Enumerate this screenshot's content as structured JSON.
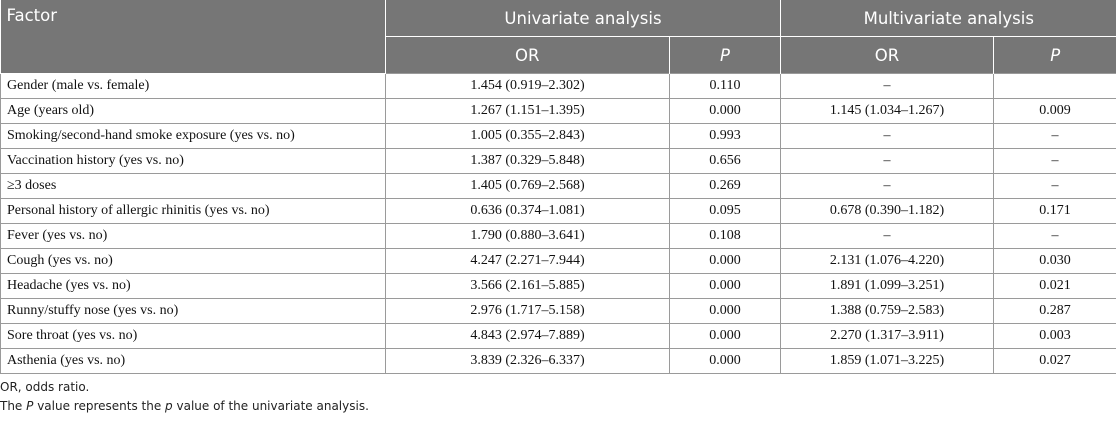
{
  "table": {
    "headers": {
      "factor": "Factor",
      "univariate": "Univariate analysis",
      "multivariate": "Multivariate analysis",
      "or": "OR",
      "p": "P"
    },
    "rows": [
      {
        "factor": "Gender (male vs. female)",
        "uni_or": "1.454 (0.919–2.302)",
        "uni_p": "0.110",
        "multi_or": "–",
        "multi_p": ""
      },
      {
        "factor": "Age (years old)",
        "uni_or": "1.267 (1.151–1.395)",
        "uni_p": "0.000",
        "multi_or": "1.145 (1.034–1.267)",
        "multi_p": "0.009"
      },
      {
        "factor": "Smoking/second-hand smoke exposure (yes vs. no)",
        "uni_or": "1.005 (0.355–2.843)",
        "uni_p": "0.993",
        "multi_or": "–",
        "multi_p": "–"
      },
      {
        "factor": "Vaccination history (yes vs. no)",
        "uni_or": "1.387 (0.329–5.848)",
        "uni_p": "0.656",
        "multi_or": "–",
        "multi_p": "–"
      },
      {
        "factor": "≥3 doses",
        "uni_or": "1.405 (0.769–2.568)",
        "uni_p": "0.269",
        "multi_or": "–",
        "multi_p": "–"
      },
      {
        "factor": "Personal history of allergic rhinitis (yes vs. no)",
        "uni_or": "0.636 (0.374–1.081)",
        "uni_p": "0.095",
        "multi_or": "0.678 (0.390–1.182)",
        "multi_p": "0.171"
      },
      {
        "factor": "Fever (yes vs. no)",
        "uni_or": "1.790 (0.880–3.641)",
        "uni_p": "0.108",
        "multi_or": "–",
        "multi_p": "–"
      },
      {
        "factor": "Cough (yes vs. no)",
        "uni_or": "4.247 (2.271–7.944)",
        "uni_p": "0.000",
        "multi_or": "2.131 (1.076–4.220)",
        "multi_p": "0.030"
      },
      {
        "factor": "Headache (yes vs. no)",
        "uni_or": "3.566 (2.161–5.885)",
        "uni_p": "0.000",
        "multi_or": "1.891 (1.099–3.251)",
        "multi_p": "0.021"
      },
      {
        "factor": "Runny/stuffy nose (yes vs. no)",
        "uni_or": "2.976 (1.717–5.158)",
        "uni_p": "0.000",
        "multi_or": "1.388 (0.759–2.583)",
        "multi_p": "0.287"
      },
      {
        "factor": "Sore throat (yes vs. no)",
        "uni_or": "4.843 (2.974–7.889)",
        "uni_p": "0.000",
        "multi_or": "2.270 (1.317–3.911)",
        "multi_p": "0.003"
      },
      {
        "factor": "Asthenia (yes vs. no)",
        "uni_or": "3.839 (2.326–6.337)",
        "uni_p": "0.000",
        "multi_or": "1.859 (1.071–3.225)",
        "multi_p": "0.027"
      }
    ]
  },
  "footnotes": {
    "line1": "OR, odds ratio.",
    "line2_pre": "The ",
    "line2_p_upper": "P",
    "line2_mid": " value represents the ",
    "line2_p_lower": "p",
    "line2_post": " value of the univariate analysis."
  }
}
